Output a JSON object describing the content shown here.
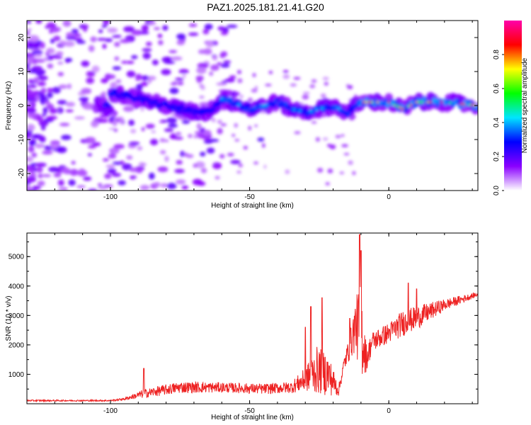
{
  "title": "PAZ1.2025.181.21.41.G20",
  "chart_data": [
    {
      "type": "heatmap",
      "xlabel": "Height of straight line (km)",
      "ylabel": "Frequency (Hz)",
      "xlim": [
        -130,
        32
      ],
      "ylim": [
        -25,
        25
      ],
      "x_ticks": [
        -100,
        -50,
        0
      ],
      "y_ticks": [
        -20,
        -10,
        0,
        10,
        20
      ],
      "colorbar": {
        "label": "Normalized spectral amplitude",
        "range": [
          0,
          1
        ],
        "ticks": [
          0.0,
          0.2,
          0.4,
          0.6,
          0.8
        ],
        "tick_labels": [
          "0.0",
          "0.2",
          "0.4",
          "0.6",
          "0.8"
        ],
        "colors": [
          "#ffffff",
          "#8a00ff",
          "#0000ff",
          "#00e5ff",
          "#00ff00",
          "#ffff00",
          "#ff0000",
          "#ff00aa"
        ]
      },
      "ridge_frequency": [
        {
          "x": -100,
          "y": 4
        },
        {
          "x": -90,
          "y": 2
        },
        {
          "x": -80,
          "y": 0
        },
        {
          "x": -70,
          "y": -2
        },
        {
          "x": -65,
          "y": -2
        },
        {
          "x": -60,
          "y": 2
        },
        {
          "x": -50,
          "y": -1
        },
        {
          "x": -40,
          "y": 1
        },
        {
          "x": -35,
          "y": -1
        },
        {
          "x": -30,
          "y": -2
        },
        {
          "x": -20,
          "y": 0
        },
        {
          "x": -15,
          "y": -2
        },
        {
          "x": -10,
          "y": 1
        },
        {
          "x": 0,
          "y": 1
        },
        {
          "x": 5,
          "y": -1
        },
        {
          "x": 10,
          "y": 1
        },
        {
          "x": 20,
          "y": 1
        },
        {
          "x": 32,
          "y": 0
        }
      ]
    },
    {
      "type": "line",
      "xlabel": "Height of straight line (km)",
      "ylabel": "SNR (10 * v/v)",
      "xlim": [
        -130,
        32
      ],
      "ylim": [
        0,
        5800
      ],
      "x_ticks": [
        -100,
        -50,
        0
      ],
      "y_ticks": [
        1000,
        2000,
        3000,
        4000,
        5000
      ],
      "series": [
        {
          "color": "#ee2222",
          "envelope": [
            {
              "x": -130,
              "base": 100,
              "amp": 50
            },
            {
              "x": -100,
              "base": 100,
              "amp": 50
            },
            {
              "x": -95,
              "base": 150,
              "amp": 80
            },
            {
              "x": -88,
              "base": 300,
              "amp": 300
            },
            {
              "x": -75,
              "base": 500,
              "amp": 400
            },
            {
              "x": -60,
              "base": 500,
              "amp": 350
            },
            {
              "x": -45,
              "base": 450,
              "amp": 350
            },
            {
              "x": -35,
              "base": 500,
              "amp": 400
            },
            {
              "x": -30,
              "base": 700,
              "amp": 800
            },
            {
              "x": -26,
              "base": 900,
              "amp": 1600
            },
            {
              "x": -22,
              "base": 800,
              "amp": 1500
            },
            {
              "x": -18,
              "base": 400,
              "amp": 400
            },
            {
              "x": -16,
              "base": 1300,
              "amp": 500
            },
            {
              "x": -14,
              "base": 1800,
              "amp": 900
            },
            {
              "x": -12,
              "base": 2400,
              "amp": 1800
            },
            {
              "x": -10,
              "base": 2000,
              "amp": 3300
            },
            {
              "x": -8,
              "base": 1400,
              "amp": 900
            },
            {
              "x": -6,
              "base": 2000,
              "amp": 700
            },
            {
              "x": 0,
              "base": 2300,
              "amp": 700
            },
            {
              "x": 5,
              "base": 2600,
              "amp": 900
            },
            {
              "x": 10,
              "base": 2800,
              "amp": 800
            },
            {
              "x": 20,
              "base": 3300,
              "amp": 400
            },
            {
              "x": 32,
              "base": 3700,
              "amp": 150
            }
          ],
          "peaks": [
            {
              "x": -30,
              "y": 2600
            },
            {
              "x": -28,
              "y": 3300
            },
            {
              "x": -24,
              "y": 3600
            },
            {
              "x": -14,
              "y": 2900
            },
            {
              "x": -10.5,
              "y": 5750
            },
            {
              "x": -10,
              "y": 5200
            },
            {
              "x": 7,
              "y": 4100
            },
            {
              "x": 10,
              "y": 3900
            },
            {
              "x": -88,
              "y": 1200
            }
          ]
        }
      ]
    }
  ]
}
